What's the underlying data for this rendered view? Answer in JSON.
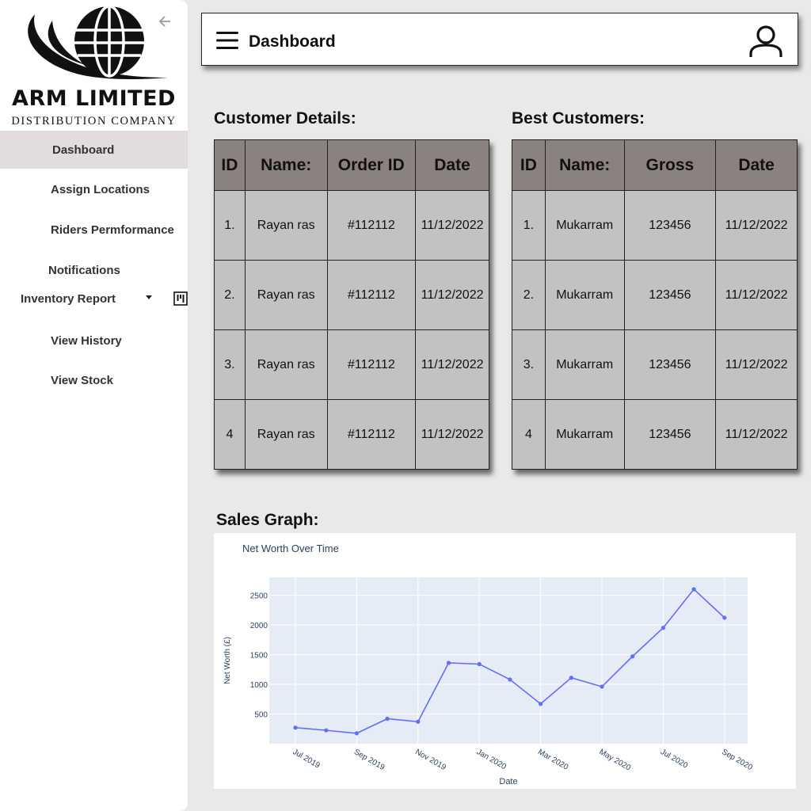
{
  "brand": {
    "name": "ARM LIMITED",
    "tagline": "DISTRIBUTION COMPANY"
  },
  "sidebar": {
    "items": [
      {
        "label": "Dashboard",
        "active": true
      },
      {
        "label": "Assign Locations"
      },
      {
        "label": "Riders Permformance"
      },
      {
        "label": "Notifications"
      },
      {
        "label": "Inventory Report",
        "has_dropdown": true
      },
      {
        "label": "View History"
      },
      {
        "label": "View Stock"
      }
    ]
  },
  "header": {
    "title": "Dashboard"
  },
  "customer_details": {
    "title": "Customer Details:",
    "columns": [
      "ID",
      "Name:",
      "Order ID",
      "Date"
    ],
    "rows": [
      [
        "1.",
        "Rayan ras",
        "#112112",
        "11/12/2022"
      ],
      [
        "2.",
        "Rayan ras",
        "#112112",
        "11/12/2022"
      ],
      [
        "3.",
        "Rayan ras",
        "#112112",
        "11/12/2022"
      ],
      [
        "4",
        "Rayan ras",
        "#112112",
        "11/12/2022"
      ]
    ]
  },
  "best_customers": {
    "title": "Best Customers:",
    "columns": [
      "ID",
      "Name:",
      "Gross",
      "Date"
    ],
    "rows": [
      [
        "1.",
        "Mukarram",
        "123456",
        "11/12/2022"
      ],
      [
        "2.",
        "Mukarram",
        "123456",
        "11/12/2022"
      ],
      [
        "3.",
        "Mukarram",
        "123456",
        "11/12/2022"
      ],
      [
        "4",
        "Mukarram",
        "123456",
        "11/12/2022"
      ]
    ]
  },
  "sales_graph": {
    "title": "Sales Graph:"
  },
  "chart_data": {
    "type": "line",
    "title": "Net Worth Over Time",
    "xlabel": "Date",
    "ylabel": "Net Worth (£)",
    "x": [
      "2019-07",
      "2019-08",
      "2019-09",
      "2019-10",
      "2019-11",
      "2019-12",
      "2020-01",
      "2020-02",
      "2020-03",
      "2020-04",
      "2020-05",
      "2020-06",
      "2020-07",
      "2020-08",
      "2020-09"
    ],
    "series": [
      {
        "values": [
          270,
          225,
          175,
          420,
          370,
          1360,
          1340,
          1080,
          670,
          1110,
          960,
          1470,
          1950,
          2600,
          2120
        ]
      }
    ],
    "x_ticks": [
      "Jul 2019",
      "Sep 2019",
      "Nov 2019",
      "Jan 2020",
      "Mar 2020",
      "May 2020",
      "Jul 2020",
      "Sep 2020"
    ],
    "y_ticks": [
      500,
      1000,
      1500,
      2000,
      2500
    ],
    "ylim": [
      0,
      2800
    ],
    "grid": true,
    "colors": {
      "line": "#636efa",
      "plot_bg": "#e5ecf6"
    }
  }
}
